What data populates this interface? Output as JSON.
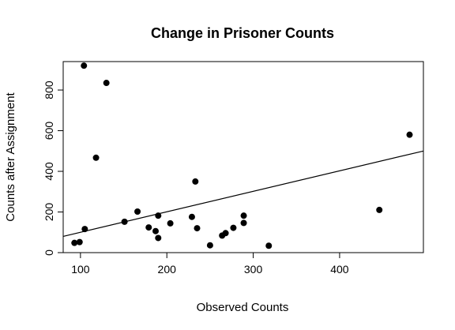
{
  "chart_data": {
    "type": "scatter",
    "title": "Change in Prisoner Counts",
    "xlabel": "Observed Counts",
    "ylabel": "Counts after Assignment",
    "xlim": [
      80,
      497
    ],
    "ylim": [
      0,
      940
    ],
    "xticks": [
      100,
      200,
      300,
      400
    ],
    "yticks": [
      0,
      200,
      400,
      600,
      800
    ],
    "grid": false,
    "legend": "none",
    "point_color": "#000000",
    "points": [
      {
        "x": 93,
        "y": 48
      },
      {
        "x": 99,
        "y": 52
      },
      {
        "x": 104,
        "y": 920
      },
      {
        "x": 105,
        "y": 116
      },
      {
        "x": 118,
        "y": 467
      },
      {
        "x": 130,
        "y": 835
      },
      {
        "x": 151,
        "y": 152
      },
      {
        "x": 166,
        "y": 202
      },
      {
        "x": 179,
        "y": 124
      },
      {
        "x": 187,
        "y": 106
      },
      {
        "x": 190,
        "y": 182
      },
      {
        "x": 190,
        "y": 72
      },
      {
        "x": 204,
        "y": 144
      },
      {
        "x": 229,
        "y": 176
      },
      {
        "x": 233,
        "y": 350
      },
      {
        "x": 235,
        "y": 120
      },
      {
        "x": 250,
        "y": 36
      },
      {
        "x": 264,
        "y": 84
      },
      {
        "x": 268,
        "y": 96
      },
      {
        "x": 277,
        "y": 122
      },
      {
        "x": 289,
        "y": 182
      },
      {
        "x": 289,
        "y": 146
      },
      {
        "x": 318,
        "y": 34
      },
      {
        "x": 446,
        "y": 210
      },
      {
        "x": 481,
        "y": 580
      }
    ],
    "regression_line": {
      "x": [
        80,
        497
      ],
      "y": [
        80,
        500
      ]
    }
  }
}
